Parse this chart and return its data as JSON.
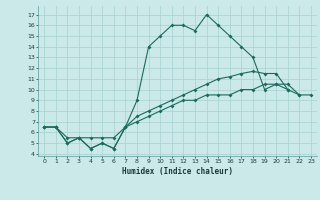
{
  "xlabel": "Humidex (Indice chaleur)",
  "ylabel": "",
  "xlim": [
    -0.5,
    23.5
  ],
  "ylim": [
    3.8,
    17.8
  ],
  "yticks": [
    4,
    5,
    6,
    7,
    8,
    9,
    10,
    11,
    12,
    13,
    14,
    15,
    16,
    17
  ],
  "xticks": [
    0,
    1,
    2,
    3,
    4,
    5,
    6,
    7,
    8,
    9,
    10,
    11,
    12,
    13,
    14,
    15,
    16,
    17,
    18,
    19,
    20,
    21,
    22,
    23
  ],
  "bg_color": "#cce9ea",
  "grid_color": "#a8d0d0",
  "line_color": "#1a6b5a",
  "line1_x": [
    0,
    1,
    2,
    3,
    4,
    5,
    6,
    7,
    8,
    9,
    10,
    11,
    12,
    13,
    14,
    15,
    16,
    17,
    18,
    19,
    20,
    21
  ],
  "line1_y": [
    6.5,
    6.5,
    5.0,
    5.5,
    4.5,
    5.0,
    4.5,
    6.5,
    9.0,
    14.0,
    15.0,
    16.0,
    16.0,
    15.5,
    17.0,
    16.0,
    15.0,
    14.0,
    13.0,
    10.0,
    10.5,
    10.0
  ],
  "line2_x": [
    0,
    1,
    2,
    3,
    4,
    5,
    6,
    7,
    8,
    9,
    10,
    11,
    12,
    13,
    14,
    15,
    16,
    17,
    18,
    19,
    20,
    21,
    22
  ],
  "line2_y": [
    6.5,
    6.5,
    5.5,
    5.5,
    5.5,
    5.5,
    5.5,
    6.5,
    7.5,
    8.0,
    8.5,
    9.0,
    9.5,
    10.0,
    10.5,
    11.0,
    11.2,
    11.5,
    11.7,
    11.5,
    11.5,
    10.0,
    9.5
  ],
  "line3_x": [
    0,
    1,
    2,
    3,
    4,
    5,
    6,
    7,
    8,
    9,
    10,
    11,
    12,
    13,
    14,
    15,
    16,
    17,
    18,
    19,
    20,
    21,
    22,
    23
  ],
  "line3_y": [
    6.5,
    6.5,
    5.0,
    5.5,
    4.5,
    5.0,
    4.5,
    6.5,
    7.0,
    7.5,
    8.0,
    8.5,
    9.0,
    9.0,
    9.5,
    9.5,
    9.5,
    10.0,
    10.0,
    10.5,
    10.5,
    10.5,
    9.5,
    9.5
  ]
}
